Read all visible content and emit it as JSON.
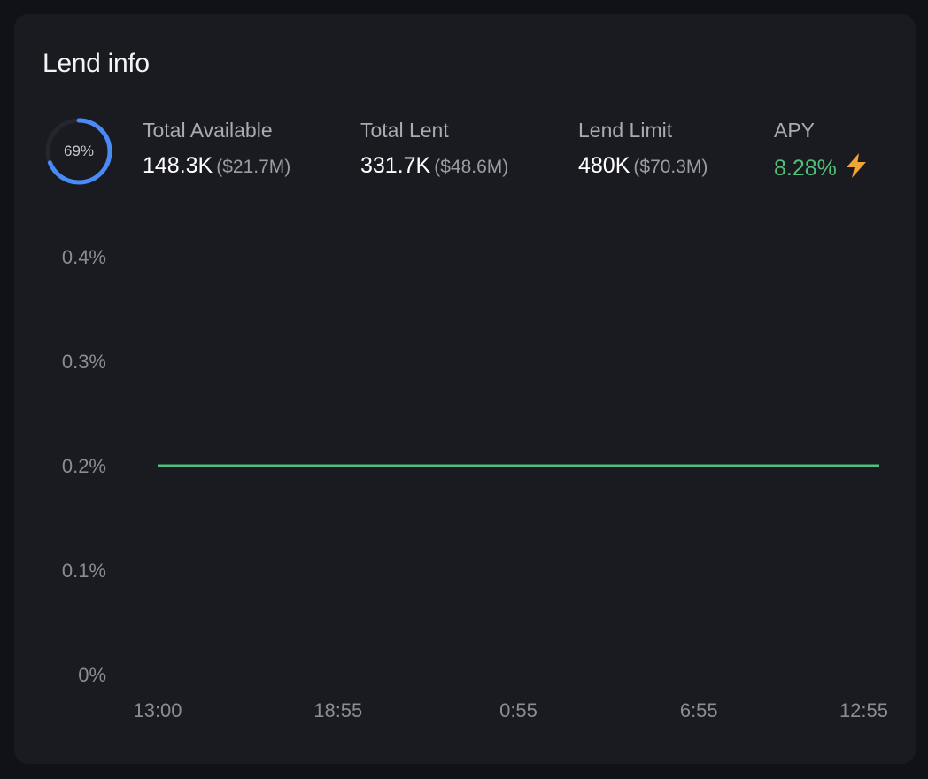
{
  "card": {
    "title": "Lend info"
  },
  "utilization": {
    "label": "69%",
    "fraction": 0.69,
    "ring_color": "#4a8af4",
    "track_color": "#25262d"
  },
  "stats": {
    "total_available": {
      "label": "Total Available",
      "value": "148.3K",
      "usd": "($21.7M)"
    },
    "total_lent": {
      "label": "Total Lent",
      "value": "331.7K",
      "usd": "($48.6M)"
    },
    "lend_limit": {
      "label": "Lend Limit",
      "value": "480K",
      "usd": "($70.3M)"
    },
    "apy": {
      "label": "APY",
      "value": "8.28%",
      "icon": "lightning-bolt-icon",
      "color": "#4fbf7a",
      "icon_color": "#f0a535"
    }
  },
  "chart_data": {
    "type": "line",
    "x": [
      "13:00",
      "18:55",
      "0:55",
      "6:55",
      "12:55"
    ],
    "series": [
      {
        "values": [
          0.2,
          0.2,
          0.2,
          0.2,
          0.2
        ],
        "color": "#4fbf7a"
      }
    ],
    "y_ticks": [
      "0%",
      "0.1%",
      "0.2%",
      "0.3%",
      "0.4%"
    ],
    "y_tick_values": [
      0,
      0.1,
      0.2,
      0.3,
      0.4
    ],
    "ylim": [
      0,
      0.4
    ],
    "grid": false,
    "title": "",
    "xlabel": "",
    "ylabel": ""
  }
}
